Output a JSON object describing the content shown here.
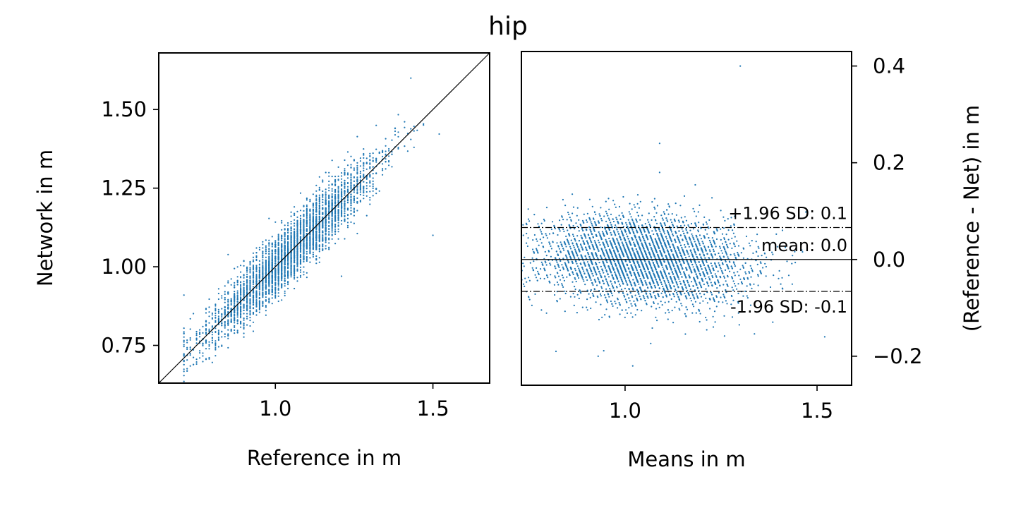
{
  "title": "hip",
  "chart_data": [
    {
      "type": "scatter",
      "panel": "left",
      "xlabel": "Reference in m",
      "ylabel": "Network in m",
      "xlim": [
        0.63,
        1.68
      ],
      "ylim": [
        0.63,
        1.68
      ],
      "xticks": [
        1.0,
        1.5
      ],
      "xtick_labels": [
        "1.0",
        "1.5"
      ],
      "yticks": [
        0.75,
        1.0,
        1.25,
        1.5
      ],
      "ytick_labels": [
        "0.75",
        "1.00",
        "1.25",
        "1.50"
      ],
      "identity_line": true,
      "point_color": "#1f77b4",
      "distribution": {
        "n_points": 4000,
        "reference_mean": 1.05,
        "reference_sd": 0.13,
        "reference_range": [
          0.71,
          1.57
        ],
        "difference_sd": 0.045
      },
      "outliers": [
        {
          "x": 1.5,
          "y": 1.1
        },
        {
          "x": 1.43,
          "y": 1.6
        },
        {
          "x": 0.71,
          "y": 0.91
        },
        {
          "x": 1.21,
          "y": 0.97
        }
      ]
    },
    {
      "type": "scatter",
      "panel": "right",
      "subtype": "bland-altman",
      "xlabel": "Means in m",
      "ylabel": "(Reference - Net) in m",
      "xlim": [
        0.73,
        1.59
      ],
      "ylim": [
        -0.26,
        0.43
      ],
      "xticks": [
        1.0,
        1.5
      ],
      "xtick_labels": [
        "1.0",
        "1.5"
      ],
      "yticks": [
        -0.2,
        0.0,
        0.2,
        0.4
      ],
      "ytick_labels": [
        "−0.2",
        "0.0",
        "0.2",
        "0.4"
      ],
      "y_axis_side": "right",
      "point_color": "#1f77b4",
      "mean_line": {
        "value": 0.0,
        "label": "mean: 0.0"
      },
      "upper_loa": {
        "value": 0.066,
        "label": "+1.96 SD: 0.1"
      },
      "lower_loa": {
        "value": -0.066,
        "label": "-1.96 SD: -0.1"
      },
      "outliers": [
        {
          "x": 1.3,
          "y": 0.4
        },
        {
          "x": 1.09,
          "y": 0.24
        },
        {
          "x": 1.09,
          "y": 0.18
        },
        {
          "x": 1.02,
          "y": -0.22
        },
        {
          "x": 0.93,
          "y": -0.2
        },
        {
          "x": 0.82,
          "y": -0.19
        },
        {
          "x": 1.52,
          "y": -0.16
        }
      ]
    }
  ]
}
